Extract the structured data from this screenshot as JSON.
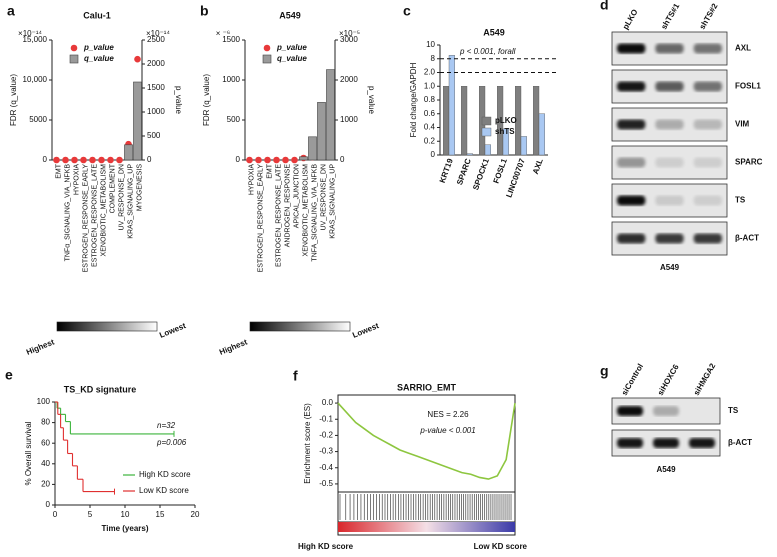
{
  "chart_data": [
    {
      "panel": "a",
      "type": "bar_dot",
      "title": "Calu-1",
      "ylabel": "FDR (q_value)",
      "y2label": "p_value",
      "yscale_label": "×10⁻¹⁴",
      "y2scale_label": "×10⁻¹⁴",
      "ylim": [
        0,
        15000
      ],
      "yticks": [
        0,
        5000,
        {
          "value": 10000,
          "label": "10,000"
        },
        {
          "value": 15000,
          "label": "15,000"
        }
      ],
      "y2lim": [
        0,
        2500
      ],
      "y2ticks": [
        0,
        500,
        1000,
        1500,
        2000,
        2500
      ],
      "categories": [
        "EMT",
        "TNFα_SIGNALING_VIA_NFKB",
        "HYPOXIA",
        "ESTROGEN_RESPONSE_EARLY",
        "ESTROGEN_RESPONSE_LATE",
        "XENOBIOTIC_METABOLISM",
        "COMPLEMENT",
        "UV_RESPONSE_DN",
        "KRAS_SIGNALING_UP",
        "MYOGENESIS"
      ],
      "series": [
        {
          "name": "p_value",
          "kind": "dot",
          "color": "#e8393a",
          "axis": "y2",
          "values": [
            0,
            0,
            0,
            0,
            0,
            0,
            0,
            0,
            330,
            2100
          ]
        },
        {
          "name": "q_value",
          "kind": "bar",
          "color": "#9a9a9a",
          "values": [
            0,
            0,
            0,
            0,
            0,
            0,
            0,
            0,
            1900,
            9750
          ]
        }
      ],
      "gradient_labels": [
        "Highest",
        "Lowest"
      ]
    },
    {
      "panel": "b",
      "type": "bar_dot",
      "title": "A549",
      "ylabel": "FDR (q_value)",
      "y2label": "p_value",
      "yscale_label": "× ⁻⁶",
      "y2scale_label": "×10⁻⁵",
      "ylim": [
        0,
        1500
      ],
      "yticks": [
        0,
        500,
        1000,
        1500
      ],
      "y2lim": [
        0,
        3000
      ],
      "y2ticks": [
        0,
        1000,
        2000,
        3000
      ],
      "categories": [
        "HYPOXIA",
        "ESTROGEN_RESPONSE_EARLY",
        "EMT",
        "ESTROGEN_RESPONSE_LATE",
        "ANDROGEN_RESPONSE",
        "APICAL_JUNCTION",
        "XENOBIOTIC_METABOLISM",
        "TNFA_SIGNALING_VIA_NFKB",
        "UV_RESPONSE_DN",
        "KRAS_SIGNALING_UP"
      ],
      "series": [
        {
          "name": "p_value",
          "kind": "dot",
          "color": "#e8393a",
          "axis": "y2",
          "values": [
            0,
            0,
            0,
            0,
            0,
            0,
            50,
            70,
            1200,
            2050
          ]
        },
        {
          "name": "q_value",
          "kind": "bar",
          "color": "#9a9a9a",
          "values": [
            0,
            0,
            0,
            0,
            0,
            0,
            40,
            290,
            720,
            1130
          ]
        }
      ],
      "gradient_labels": [
        "Highest",
        "Lowest"
      ]
    },
    {
      "panel": "c",
      "type": "grouped_bar",
      "title": "A549",
      "ylabel": "Fold change/GAPDH",
      "ylim": [
        0,
        10
      ],
      "yticks": [
        0,
        0.2,
        0.4,
        0.6,
        0.8,
        {
          "value": 1,
          "label": "1.0"
        },
        {
          "value": 2,
          "label": "2.0"
        },
        8,
        10
      ],
      "categories": [
        "KRT19",
        "SPARC",
        "SPOCK1",
        "FOSL1",
        "LINC00707",
        "AXL"
      ],
      "series": [
        {
          "name": "pLKO",
          "color": "#7f7f7f",
          "values": [
            1,
            1,
            1,
            1,
            1,
            1
          ]
        },
        {
          "name": "shTS",
          "color": "#a9c8f2",
          "values": [
            8.5,
            0.02,
            0.15,
            0.38,
            0.27,
            0.6
          ]
        }
      ],
      "reference_lines": [
        8,
        2
      ],
      "annotation": "p < 0.001, forall"
    },
    {
      "panel": "e",
      "type": "step",
      "title": "TS_KD signature",
      "xlabel": "Time (years)",
      "ylabel": "% Overall survival",
      "xlim": [
        0,
        20
      ],
      "xticks": [
        0,
        5,
        10,
        15,
        20
      ],
      "ylim": [
        0,
        100
      ],
      "yticks": [
        0,
        20,
        40,
        60,
        80,
        100
      ],
      "annotations": [
        "n=32",
        "p=0.006"
      ],
      "series": [
        {
          "name": "High KD score",
          "color": "#3cb43c",
          "x": [
            0,
            0.3,
            0.8,
            1.5,
            2.2,
            17
          ],
          "values": [
            100,
            94,
            88,
            81,
            69,
            69
          ]
        },
        {
          "name": "Low KD score",
          "color": "#e03030",
          "x": [
            0,
            0.4,
            0.8,
            1.2,
            1.8,
            2.5,
            3.2,
            4,
            8.5
          ],
          "values": [
            100,
            88,
            75,
            63,
            50,
            38,
            25,
            13,
            13
          ]
        }
      ]
    },
    {
      "panel": "f",
      "type": "line",
      "title": "SARRIO_EMT",
      "ylabel": "Enrichment score (ES)",
      "xlim": [
        0,
        1
      ],
      "ylim": [
        -0.55,
        0.05
      ],
      "yticks": [
        {
          "value": 0,
          "label": "0.0"
        },
        -0.1,
        -0.2,
        -0.3,
        -0.4,
        -0.5
      ],
      "annotations": [
        "NES = 2.26",
        "p-value < 0.001"
      ],
      "bottom_labels": [
        "High KD score",
        "Low KD score"
      ],
      "color": "#8dc63f",
      "x": [
        0,
        0.05,
        0.1,
        0.15,
        0.2,
        0.25,
        0.3,
        0.35,
        0.4,
        0.45,
        0.5,
        0.55,
        0.6,
        0.65,
        0.7,
        0.75,
        0.8,
        0.85,
        0.9,
        0.95,
        1
      ],
      "values": [
        0,
        -0.06,
        -0.12,
        -0.16,
        -0.2,
        -0.23,
        -0.26,
        -0.29,
        -0.31,
        -0.33,
        -0.35,
        -0.37,
        -0.39,
        -0.41,
        -0.43,
        -0.44,
        -0.46,
        -0.47,
        -0.45,
        -0.35,
        0
      ]
    }
  ],
  "blots": [
    {
      "panel": "d",
      "columns": [
        "pLKO",
        "shTS#1",
        "shTS#2"
      ],
      "rows": [
        "AXL",
        "FOSL1",
        "VIM",
        "SPARC",
        "TS",
        "β-ACT"
      ],
      "cell_line": "A549"
    },
    {
      "panel": "g",
      "columns": [
        "siControl",
        "siHOXC6",
        "siHMGA2"
      ],
      "rows": [
        "TS",
        "β-ACT"
      ],
      "cell_line": "A549"
    }
  ]
}
